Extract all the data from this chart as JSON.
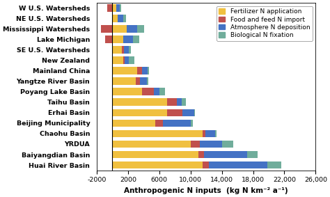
{
  "categories": [
    "Huai River Basin",
    "Baiyangdian Basin",
    "YRDUA",
    "Chaohu Basin",
    "Beijing Municipality",
    "Erhai Basin",
    "Taihu Basin",
    "Poyang Lake Basin",
    "Yangtze River Basin",
    "Mainland China",
    "New Zealand",
    "SE U.S. Watersheds",
    "Lake Michigan",
    "Mississippi Watersheds",
    "NE U.S. Watersheds",
    "W U.S. Watersheds"
  ],
  "fertilizer": [
    11500,
    11000,
    10000,
    11500,
    5500,
    7000,
    7000,
    3800,
    3000,
    3200,
    1400,
    1200,
    1400,
    1800,
    700,
    500
  ],
  "food_feed": [
    800,
    700,
    1200,
    400,
    1000,
    2000,
    1200,
    1500,
    500,
    600,
    200,
    300,
    -900,
    -1500,
    0,
    -700
  ],
  "atmosphere": [
    7500,
    5500,
    2800,
    1200,
    3500,
    1500,
    700,
    700,
    900,
    700,
    500,
    600,
    1200,
    1400,
    700,
    400
  ],
  "biological": [
    1800,
    1400,
    1500,
    200,
    300,
    100,
    500,
    700,
    200,
    200,
    700,
    300,
    800,
    900,
    300,
    200
  ],
  "colors": {
    "fertilizer": "#F0C040",
    "food_feed": "#C0504D",
    "atmosphere": "#4472C4",
    "biological": "#70AD9B"
  },
  "legend_labels": [
    "Fertilizer N application",
    "Food and feed N import",
    "Atmosphere N deposition",
    "Biological N fixation"
  ],
  "xlabel": "Anthropogenic N inputs  (kg N km⁻² a⁻¹)",
  "xlim": [
    -2000,
    26000
  ],
  "xticks": [
    -2000,
    2000,
    6000,
    10000,
    14000,
    18000,
    22000,
    26000
  ],
  "xtick_labels": [
    "-2000",
    "2000",
    "6000",
    "10,000",
    "14,000",
    "18,000",
    "22,000",
    "26,000"
  ],
  "background_color": "#ffffff",
  "bar_height": 0.72,
  "label_fontsize": 7.5,
  "tick_fontsize": 6.8,
  "legend_fontsize": 6.5
}
